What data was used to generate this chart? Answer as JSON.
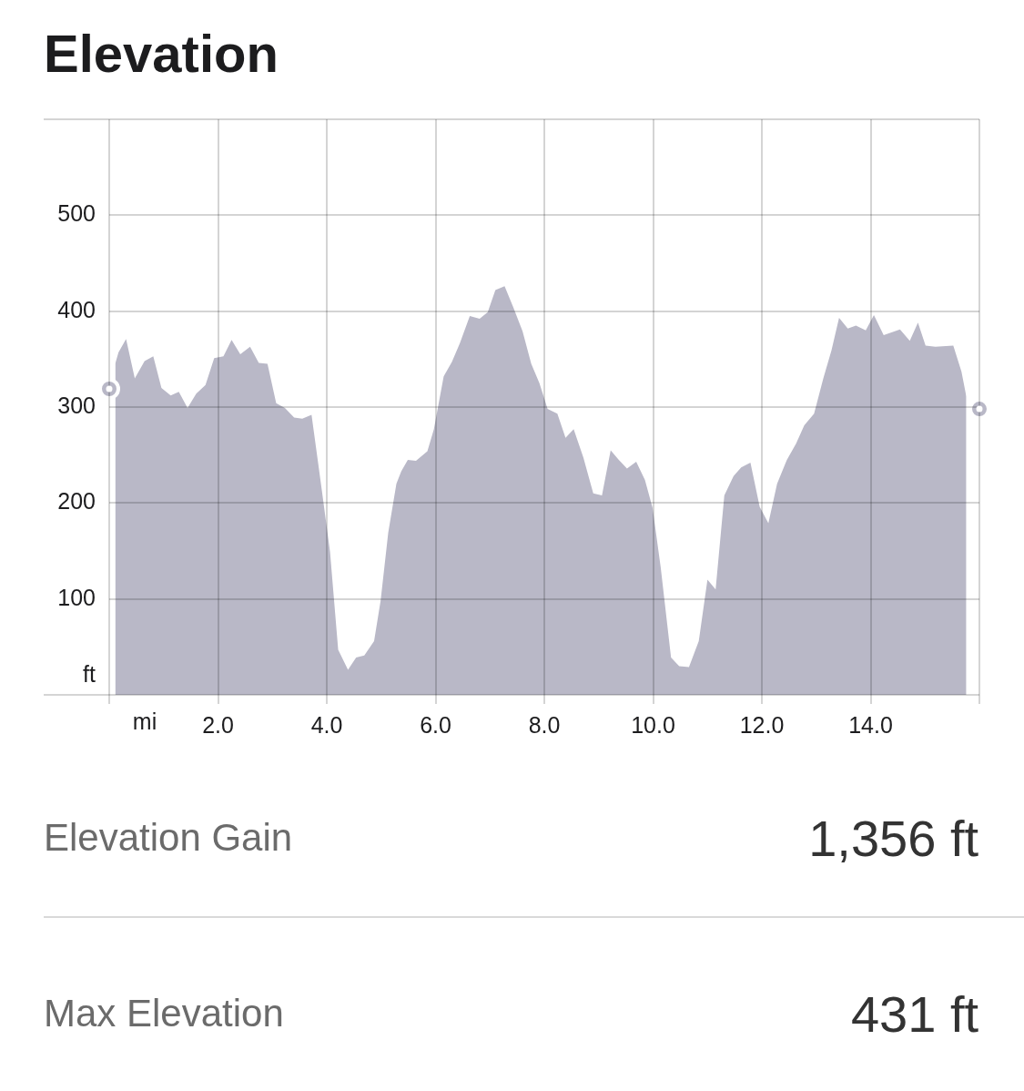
{
  "chart_data": {
    "type": "area",
    "title": "Elevation",
    "xlabel": "mi",
    "ylabel": "ft",
    "xlim": [
      0,
      16
    ],
    "xticks": [
      {
        "value": 0,
        "label": null
      },
      {
        "value": 2,
        "label": "2.0"
      },
      {
        "value": 4,
        "label": "4.0"
      },
      {
        "value": 6,
        "label": "6.0"
      },
      {
        "value": 8,
        "label": "8.0"
      },
      {
        "value": 10,
        "label": "10.0"
      },
      {
        "value": 12,
        "label": "12.0"
      },
      {
        "value": 14,
        "label": "14.0"
      },
      {
        "value": 16,
        "label": null
      }
    ],
    "ylim": [
      0,
      600
    ],
    "yticks": [
      {
        "value": 0,
        "label": null
      },
      100,
      200,
      300,
      400,
      500,
      {
        "value": 600,
        "label": null
      }
    ],
    "grid": true,
    "series": [
      {
        "color": "#b9b8c7",
        "x": [
          0.11,
          0.17,
          0.31,
          0.47,
          0.65,
          0.81,
          0.96,
          1.13,
          1.28,
          1.44,
          1.6,
          1.77,
          1.93,
          2.1,
          2.25,
          2.41,
          2.59,
          2.75,
          2.91,
          3.07,
          3.23,
          3.4,
          3.55,
          3.72,
          3.91,
          4.06,
          4.21,
          4.39,
          4.54,
          4.69,
          4.87,
          4.99,
          5.13,
          5.28,
          5.37,
          5.49,
          5.64,
          5.85,
          5.97,
          6.15,
          6.3,
          6.45,
          6.63,
          6.81,
          6.96,
          7.1,
          7.27,
          7.43,
          7.6,
          7.76,
          7.91,
          8.06,
          8.24,
          8.39,
          8.54,
          8.72,
          8.9,
          9.06,
          9.22,
          9.37,
          9.52,
          9.69,
          9.85,
          9.99,
          10.14,
          10.33,
          10.48,
          10.66,
          10.84,
          11,
          11.15,
          11.31,
          11.48,
          11.62,
          11.79,
          11.96,
          12.12,
          12.28,
          12.46,
          12.63,
          12.78,
          12.96,
          13.13,
          13.28,
          13.42,
          13.58,
          13.73,
          13.91,
          14.06,
          14.24,
          14.54,
          14.72,
          14.87,
          15.01,
          15.19,
          15.52,
          15.67,
          15.76
        ],
        "values": [
          345,
          357,
          371,
          330,
          348,
          353,
          320,
          312,
          316,
          299,
          314,
          323,
          351,
          353,
          370,
          355,
          363,
          346,
          345,
          304,
          299,
          289,
          288,
          292,
          213,
          149,
          47,
          26,
          39,
          41,
          56,
          98,
          169,
          220,
          233,
          245,
          244,
          254,
          277,
          332,
          347,
          367,
          395,
          392,
          399,
          422,
          426,
          404,
          379,
          345,
          325,
          298,
          293,
          268,
          277,
          247,
          210,
          208,
          255,
          245,
          236,
          243,
          224,
          195,
          133,
          39,
          30,
          29,
          56,
          120,
          110,
          208,
          228,
          237,
          242,
          196,
          179,
          220,
          245,
          262,
          281,
          293,
          330,
          359,
          393,
          382,
          385,
          380,
          396,
          375,
          381,
          369,
          388,
          364,
          363,
          364,
          337,
          311
        ]
      },
      {
        "type": "scatter",
        "color": "#b9b8c7",
        "marker": "circle",
        "x": [
          0,
          16
        ],
        "values": [
          319,
          298
        ]
      }
    ],
    "annotations": [
      "Elevation Gain",
      "1,356 ft",
      "Max Elevation",
      "431 ft"
    ]
  }
}
